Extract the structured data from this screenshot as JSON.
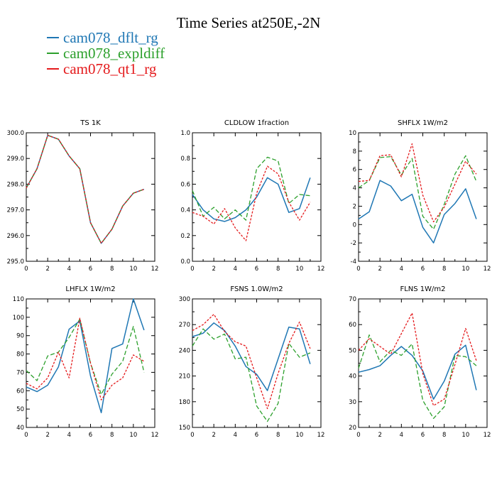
{
  "title": "Time Series at250E,-2N",
  "legend": [
    {
      "label": "cam078_dflt_rg",
      "color": "#1f77b4"
    },
    {
      "label": "cam078_expldiff",
      "color": "#2ca02c"
    },
    {
      "label": "cam078_qt1_rg",
      "color": "#e41a1c"
    }
  ],
  "chart_data": [
    {
      "type": "line",
      "title": "TS   1K",
      "x": [
        0,
        1,
        2,
        3,
        4,
        5,
        6,
        7,
        8,
        9,
        10,
        11
      ],
      "xlim": [
        0,
        12
      ],
      "xticks": [
        "0",
        "2",
        "4",
        "6",
        "8",
        "10",
        "12"
      ],
      "ylim": [
        295,
        300
      ],
      "yticks": [
        "295.0",
        "296.0",
        "297.0",
        "298.0",
        "299.0",
        "300.0"
      ],
      "ytick_values": [
        295,
        296,
        297,
        298,
        299,
        300
      ],
      "series": [
        {
          "name": "cam078_dflt_rg",
          "values": [
            297.85,
            298.6,
            299.9,
            299.75,
            299.1,
            298.6,
            296.5,
            295.7,
            296.25,
            297.15,
            297.65,
            297.8
          ]
        },
        {
          "name": "cam078_expldiff",
          "values": [
            297.85,
            298.6,
            299.9,
            299.75,
            299.1,
            298.6,
            296.5,
            295.7,
            296.25,
            297.15,
            297.65,
            297.8
          ]
        },
        {
          "name": "cam078_qt1_rg",
          "values": [
            297.85,
            298.6,
            299.9,
            299.75,
            299.1,
            298.6,
            296.5,
            295.7,
            296.25,
            297.15,
            297.65,
            297.8
          ]
        }
      ]
    },
    {
      "type": "line",
      "title": "CLDLOW   1fraction",
      "x": [
        0,
        1,
        2,
        3,
        4,
        5,
        6,
        7,
        8,
        9,
        10,
        11
      ],
      "xlim": [
        0,
        12
      ],
      "xticks": [
        "0",
        "2",
        "4",
        "6",
        "8",
        "10",
        "12"
      ],
      "ylim": [
        0,
        1
      ],
      "yticks": [
        "0.0",
        "0.2",
        "0.4",
        "0.6",
        "0.8",
        "1.0"
      ],
      "ytick_values": [
        0,
        0.2,
        0.4,
        0.6,
        0.8,
        1.0
      ],
      "series": [
        {
          "name": "cam078_dflt_rg",
          "values": [
            0.52,
            0.4,
            0.33,
            0.31,
            0.34,
            0.4,
            0.5,
            0.65,
            0.6,
            0.38,
            0.41,
            0.65
          ]
        },
        {
          "name": "cam078_expldiff",
          "values": [
            0.55,
            0.35,
            0.42,
            0.33,
            0.4,
            0.32,
            0.72,
            0.81,
            0.78,
            0.45,
            0.52,
            0.51
          ]
        },
        {
          "name": "cam078_qt1_rg",
          "values": [
            0.38,
            0.35,
            0.29,
            0.41,
            0.26,
            0.16,
            0.53,
            0.74,
            0.68,
            0.46,
            0.32,
            0.46
          ]
        }
      ]
    },
    {
      "type": "line",
      "title": "SHFLX   1W/m2",
      "x": [
        0,
        1,
        2,
        3,
        4,
        5,
        6,
        7,
        8,
        9,
        10,
        11
      ],
      "xlim": [
        0,
        12
      ],
      "xticks": [
        "0",
        "2",
        "4",
        "6",
        "8",
        "10",
        "12"
      ],
      "ylim": [
        -4,
        10
      ],
      "yticks": [
        "-4",
        "-2",
        "0",
        "2",
        "4",
        "6",
        "8",
        "10"
      ],
      "ytick_values": [
        -4,
        -2,
        0,
        2,
        4,
        6,
        8,
        10
      ],
      "series": [
        {
          "name": "cam078_dflt_rg",
          "values": [
            0.6,
            1.4,
            4.8,
            4.2,
            2.6,
            3.3,
            -0.3,
            -2.0,
            1.1,
            2.3,
            3.9,
            0.6
          ]
        },
        {
          "name": "cam078_expldiff",
          "values": [
            4.0,
            4.8,
            7.3,
            7.4,
            5.4,
            7.2,
            0.9,
            -0.5,
            2.2,
            5.5,
            7.5,
            4.7
          ]
        },
        {
          "name": "cam078_qt1_rg",
          "values": [
            4.7,
            4.8,
            7.5,
            7.6,
            5.2,
            8.8,
            3.2,
            0.3,
            1.9,
            4.4,
            6.9,
            5.5
          ]
        }
      ]
    },
    {
      "type": "line",
      "title": "LHFLX   1W/m2",
      "x": [
        0,
        1,
        2,
        3,
        4,
        5,
        6,
        7,
        8,
        9,
        10,
        11
      ],
      "xlim": [
        0,
        12
      ],
      "xticks": [
        "0",
        "2",
        "4",
        "6",
        "8",
        "10",
        "12"
      ],
      "ylim": [
        40,
        110
      ],
      "yticks": [
        "40",
        "50",
        "60",
        "70",
        "80",
        "90",
        "100",
        "110"
      ],
      "ytick_values": [
        40,
        50,
        60,
        70,
        80,
        90,
        100,
        110
      ],
      "series": [
        {
          "name": "cam078_dflt_rg",
          "values": [
            62,
            59.5,
            63,
            73,
            93.5,
            98,
            68,
            48,
            83,
            85.5,
            110,
            93
          ]
        },
        {
          "name": "cam078_expldiff",
          "values": [
            71,
            65.5,
            79,
            81,
            89,
            99,
            75,
            58,
            69,
            76,
            95,
            70
          ]
        },
        {
          "name": "cam078_qt1_rg",
          "values": [
            64,
            61,
            67,
            81,
            67,
            99.5,
            75,
            55,
            63,
            67,
            79.5,
            76
          ]
        }
      ]
    },
    {
      "type": "line",
      "title": "FSNS   1.0W/m2",
      "x": [
        0,
        1,
        2,
        3,
        4,
        5,
        6,
        7,
        8,
        9,
        10,
        11
      ],
      "xlim": [
        0,
        12
      ],
      "xticks": [
        "0",
        "2",
        "4",
        "6",
        "8",
        "10",
        "12"
      ],
      "ylim": [
        150,
        300
      ],
      "yticks": [
        "150",
        "180",
        "210",
        "240",
        "270",
        "300"
      ],
      "ytick_values": [
        150,
        180,
        210,
        240,
        270,
        300
      ],
      "series": [
        {
          "name": "cam078_dflt_rg",
          "values": [
            256,
            260,
            272,
            263,
            245,
            221,
            212,
            193,
            230,
            267,
            265,
            224
          ]
        },
        {
          "name": "cam078_expldiff",
          "values": [
            245,
            265,
            253,
            259,
            230,
            232,
            175,
            157,
            178,
            248,
            232,
            237
          ]
        },
        {
          "name": "cam078_qt1_rg",
          "values": [
            263,
            270,
            282,
            262,
            250,
            245,
            208,
            172,
            213,
            248,
            273,
            242
          ]
        }
      ]
    },
    {
      "type": "line",
      "title": "FLNS   1W/m2",
      "x": [
        0,
        1,
        2,
        3,
        4,
        5,
        6,
        7,
        8,
        9,
        10,
        11
      ],
      "xlim": [
        0,
        12
      ],
      "xticks": [
        "0",
        "2",
        "4",
        "6",
        "8",
        "10",
        "12"
      ],
      "ylim": [
        20,
        70
      ],
      "yticks": [
        "20",
        "30",
        "40",
        "50",
        "60",
        "70"
      ],
      "ytick_values": [
        20,
        30,
        40,
        50,
        60,
        70
      ],
      "series": [
        {
          "name": "cam078_dflt_rg",
          "values": [
            41.5,
            42.5,
            44,
            48,
            51.5,
            48,
            42,
            31,
            38,
            48.5,
            52,
            34.5
          ]
        },
        {
          "name": "cam078_expldiff",
          "values": [
            43,
            56,
            45.5,
            50,
            48,
            52.5,
            30.5,
            23.5,
            28,
            48,
            47.5,
            44
          ]
        },
        {
          "name": "cam078_qt1_rg",
          "values": [
            50,
            54.5,
            51.5,
            48.5,
            56.5,
            64.5,
            41,
            28.5,
            31,
            44.5,
            58.5,
            46
          ]
        }
      ]
    }
  ]
}
